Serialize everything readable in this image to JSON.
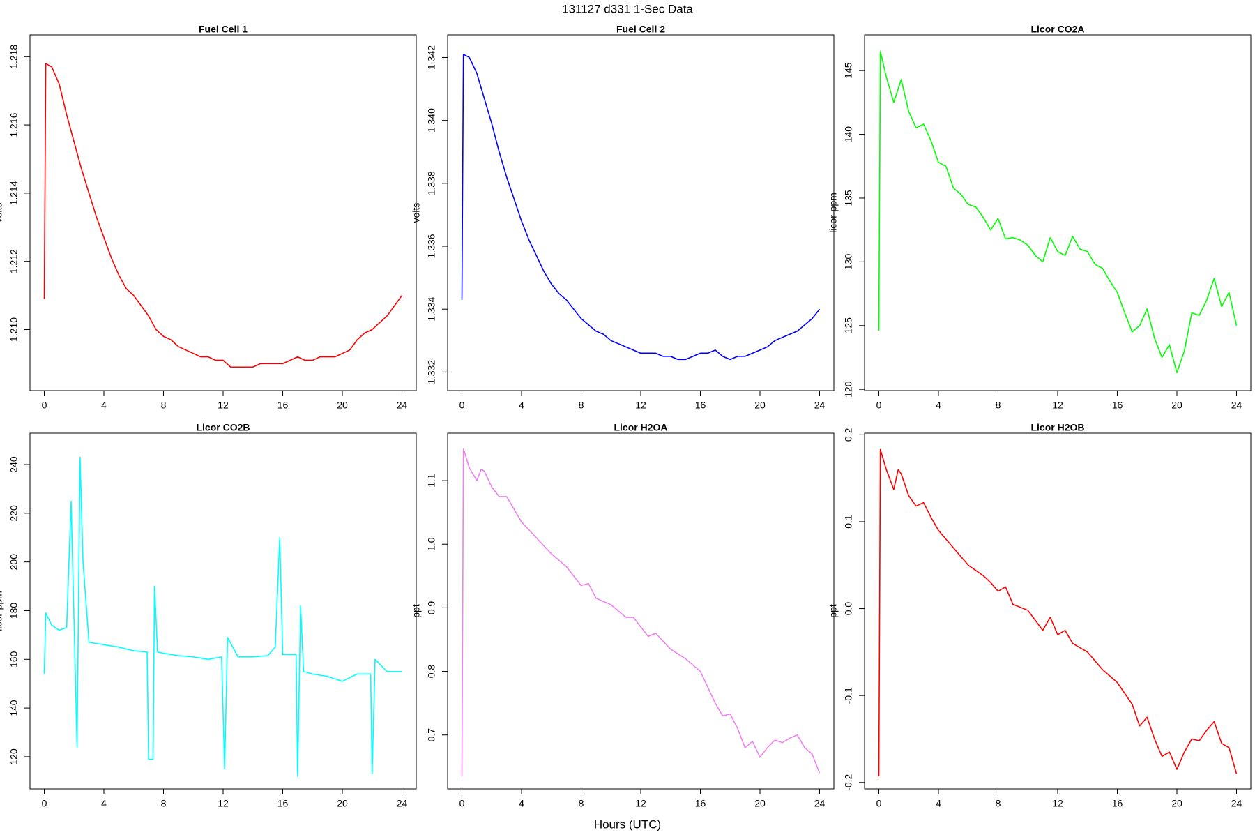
{
  "suptitle": "131127   d331   1-Sec Data",
  "xlabel": "Hours (UTC)",
  "chart_data": [
    {
      "type": "line",
      "title": "Fuel Cell 1",
      "ylabel": "volts",
      "color": "#ff0000",
      "x": [
        0,
        0.1,
        0.5,
        1,
        1.5,
        2,
        2.5,
        3,
        3.5,
        4,
        4.5,
        5,
        5.5,
        6,
        6.5,
        7,
        7.5,
        8,
        8.5,
        9,
        9.5,
        10,
        10.5,
        11,
        11.5,
        12,
        12.5,
        13,
        13.5,
        14,
        14.5,
        15,
        15.5,
        16,
        16.5,
        17,
        17.5,
        18,
        18.5,
        19,
        19.5,
        20,
        20.5,
        21,
        21.5,
        22,
        22.5,
        23,
        23.5,
        24
      ],
      "values": [
        1.2109,
        1.2178,
        1.2177,
        1.2172,
        1.2163,
        1.2155,
        1.2147,
        1.214,
        1.2133,
        1.2127,
        1.2121,
        1.2116,
        1.2112,
        1.211,
        1.2107,
        1.2104,
        1.21,
        1.2098,
        1.2097,
        1.2095,
        1.2094,
        1.2093,
        1.2092,
        1.2092,
        1.2091,
        1.2091,
        1.2089,
        1.2089,
        1.2089,
        1.2089,
        1.209,
        1.209,
        1.209,
        1.209,
        1.2091,
        1.2092,
        1.2091,
        1.2091,
        1.2092,
        1.2092,
        1.2092,
        1.2093,
        1.2094,
        1.2097,
        1.2099,
        1.21,
        1.2102,
        1.2104,
        1.2107,
        1.211
      ],
      "xlim": [
        -0.96,
        24.96
      ],
      "xticks": [
        0,
        4,
        8,
        12,
        16,
        20,
        24
      ],
      "ylim": [
        1.20821,
        1.21864
      ],
      "yticks": [
        {
          "value": 1.21,
          "label": "1.210"
        },
        {
          "value": 1.212,
          "label": "1.212"
        },
        {
          "value": 1.214,
          "label": "1.214"
        },
        {
          "value": 1.216,
          "label": "1.216"
        },
        {
          "value": 1.218,
          "label": "1.218"
        }
      ]
    },
    {
      "type": "line",
      "title": "Fuel Cell 2",
      "ylabel": "volts",
      "color": "#0000ff",
      "x": [
        0,
        0.1,
        0.5,
        1,
        1.5,
        2,
        2.5,
        3,
        3.5,
        4,
        4.5,
        5,
        5.5,
        6,
        6.5,
        7,
        7.5,
        8,
        8.5,
        9,
        9.5,
        10,
        10.5,
        11,
        11.5,
        12,
        12.5,
        13,
        13.5,
        14,
        14.5,
        15,
        15.5,
        16,
        16.5,
        17,
        17.5,
        18,
        18.5,
        19,
        19.5,
        20,
        20.5,
        21,
        21.5,
        22,
        22.5,
        23,
        23.5,
        24
      ],
      "values": [
        1.3343,
        1.3421,
        1.342,
        1.3415,
        1.3407,
        1.3399,
        1.339,
        1.3382,
        1.3375,
        1.3368,
        1.3362,
        1.3357,
        1.3352,
        1.3348,
        1.3345,
        1.3343,
        1.334,
        1.3337,
        1.3335,
        1.3333,
        1.3332,
        1.333,
        1.3329,
        1.3328,
        1.3327,
        1.3326,
        1.3326,
        1.3326,
        1.3325,
        1.3325,
        1.3324,
        1.3324,
        1.3325,
        1.3326,
        1.3326,
        1.3327,
        1.3325,
        1.3324,
        1.3325,
        1.3325,
        1.3326,
        1.3327,
        1.3328,
        1.333,
        1.3331,
        1.3332,
        1.3333,
        1.3335,
        1.3337,
        1.334
      ],
      "xlim": [
        -0.96,
        24.96
      ],
      "xticks": [
        0,
        4,
        8,
        12,
        16,
        20,
        24
      ],
      "ylim": [
        1.33141,
        1.34272
      ],
      "yticks": [
        1.332,
        1.334,
        1.336,
        1.338,
        {
          "value": 1.34,
          "label": "1.340"
        },
        1.342
      ]
    },
    {
      "type": "line",
      "title": "Licor CO2A",
      "ylabel": "licor-ppm",
      "color": "#00ff00",
      "x": [
        0,
        0.1,
        0.5,
        1,
        1.5,
        2,
        2.5,
        3,
        3.5,
        4,
        4.5,
        5,
        5.5,
        6,
        6.5,
        7,
        7.5,
        8,
        8.5,
        9,
        9.5,
        10,
        10.5,
        11,
        11.5,
        12,
        12.5,
        13,
        13.5,
        14,
        14.5,
        15,
        15.5,
        16,
        16.5,
        17,
        17.5,
        18,
        18.5,
        19,
        19.5,
        20,
        20.5,
        21,
        21.5,
        22,
        22.5,
        23,
        23.5,
        24
      ],
      "values": [
        124.6,
        146.5,
        144.5,
        142.5,
        144.3,
        141.8,
        140.5,
        140.8,
        139.5,
        137.8,
        137.5,
        135.8,
        135.3,
        134.5,
        134.3,
        133.5,
        132.5,
        133.4,
        131.8,
        131.9,
        131.7,
        131.3,
        130.5,
        130,
        131.9,
        130.8,
        130.5,
        132,
        131,
        130.8,
        129.8,
        129.5,
        128.5,
        127.6,
        126,
        124.5,
        125,
        126.3,
        124,
        122.5,
        123.5,
        121.3,
        123,
        126,
        125.8,
        127,
        128.7,
        126.5,
        127.6,
        125
      ],
      "xlim": [
        -0.96,
        24.96
      ],
      "xticks": [
        0,
        4,
        8,
        12,
        16,
        20,
        24
      ],
      "ylim": [
        119.9,
        147.8
      ],
      "yticks": [
        120,
        125,
        130,
        135,
        140,
        145
      ]
    },
    {
      "type": "line",
      "title": "Licor CO2B",
      "ylabel": "licor-ppm",
      "color": "#00ffff",
      "x": [
        0,
        0.1,
        0.5,
        1,
        1.5,
        1.8,
        2,
        2.2,
        2.4,
        2.6,
        3,
        3.5,
        4,
        5,
        6,
        6.9,
        7,
        7.3,
        7.4,
        7.6,
        8,
        9,
        10,
        11,
        11.9,
        12.1,
        12.3,
        13,
        14,
        15,
        15.5,
        15.8,
        16,
        16.5,
        16.9,
        17,
        17.2,
        17.4,
        18,
        19,
        20,
        21,
        21.9,
        22,
        22.2,
        23,
        24
      ],
      "values": [
        154,
        179,
        174,
        172,
        173,
        225,
        175,
        124,
        243,
        200,
        167,
        166.5,
        166,
        165,
        163.5,
        163,
        119,
        119,
        190,
        163,
        162.5,
        161.5,
        161,
        160,
        161,
        115,
        169,
        161,
        161,
        161.5,
        165,
        210,
        162,
        162,
        162,
        112,
        182,
        155,
        154,
        153,
        151,
        154,
        154,
        113,
        160,
        155,
        155
      ],
      "xlim": [
        -0.96,
        24.96
      ],
      "xticks": [
        0,
        4,
        8,
        12,
        16,
        20,
        24
      ],
      "ylim": [
        106.8,
        252.9
      ],
      "yticks": [
        120,
        140,
        160,
        180,
        200,
        220,
        240
      ]
    },
    {
      "type": "line",
      "title": "Licor H2OA",
      "ylabel": "ppt",
      "color": "#ee82ee",
      "x": [
        0,
        0.1,
        0.5,
        1,
        1.3,
        1.5,
        2,
        2.5,
        3,
        3.5,
        4,
        5,
        6,
        7,
        7.5,
        8,
        8.5,
        9,
        10,
        11,
        11.5,
        12,
        12.5,
        13,
        14,
        15,
        16,
        16.5,
        17,
        17.5,
        18,
        18.5,
        19,
        19.5,
        20,
        20.5,
        21,
        21.5,
        22,
        22.5,
        23,
        23.5,
        24
      ],
      "values": [
        0.635,
        1.15,
        1.12,
        1.1,
        1.118,
        1.115,
        1.09,
        1.075,
        1.075,
        1.055,
        1.035,
        1.01,
        0.985,
        0.965,
        0.95,
        0.935,
        0.938,
        0.915,
        0.905,
        0.885,
        0.885,
        0.87,
        0.855,
        0.86,
        0.835,
        0.82,
        0.8,
        0.775,
        0.75,
        0.73,
        0.733,
        0.71,
        0.68,
        0.69,
        0.665,
        0.68,
        0.692,
        0.688,
        0.695,
        0.7,
        0.68,
        0.67,
        0.64
      ],
      "xlim": [
        -0.96,
        24.96
      ],
      "xticks": [
        0,
        4,
        8,
        12,
        16,
        20,
        24
      ],
      "ylim": [
        0.6152,
        1.1747
      ],
      "yticks": [
        0.7,
        0.8,
        0.9,
        {
          "value": 1,
          "label": "1.0"
        },
        1.1
      ]
    },
    {
      "type": "line",
      "title": "Licor H2OB",
      "ylabel": "ppt",
      "color": "#ff0000",
      "x": [
        0,
        0.1,
        0.5,
        1,
        1.3,
        1.5,
        2,
        2.5,
        3,
        3.5,
        4,
        5,
        6,
        7,
        7.5,
        8,
        8.5,
        9,
        10,
        11,
        11.5,
        12,
        12.5,
        13,
        14,
        15,
        16,
        17,
        17.5,
        18,
        18.5,
        19,
        19.5,
        20,
        20.5,
        21,
        21.5,
        22,
        22.5,
        23,
        23.5,
        24
      ],
      "values": [
        -0.193,
        0.183,
        0.16,
        0.137,
        0.16,
        0.155,
        0.13,
        0.118,
        0.122,
        0.105,
        0.09,
        0.07,
        0.05,
        0.038,
        0.03,
        0.02,
        0.025,
        0.005,
        -0.002,
        -0.025,
        -0.01,
        -0.03,
        -0.025,
        -0.04,
        -0.05,
        -0.07,
        -0.085,
        -0.11,
        -0.135,
        -0.125,
        -0.15,
        -0.17,
        -0.165,
        -0.185,
        -0.165,
        -0.15,
        -0.152,
        -0.14,
        -0.13,
        -0.155,
        -0.16,
        -0.19
      ],
      "xlim": [
        -0.96,
        24.96
      ],
      "xticks": [
        0,
        4,
        8,
        12,
        16,
        20,
        24
      ],
      "ylim": [
        -0.2074,
        0.2019
      ],
      "yticks": [
        -0.2,
        -0.1,
        {
          "value": 0,
          "label": "0.0"
        },
        0.1,
        0.2
      ]
    }
  ]
}
